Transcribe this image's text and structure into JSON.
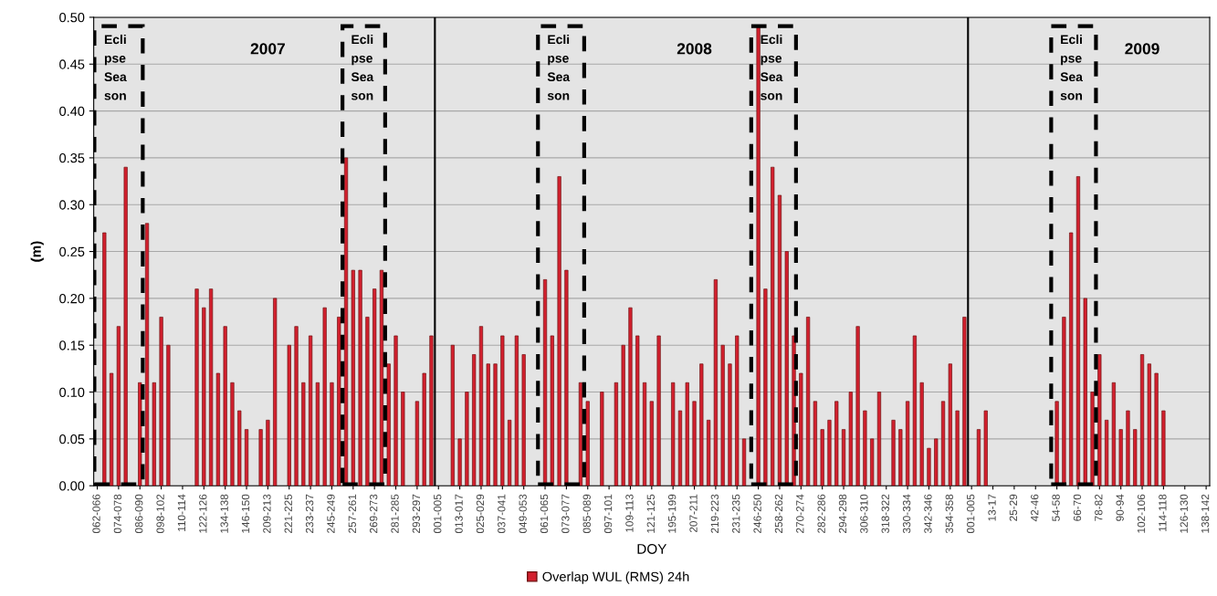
{
  "chart_data": {
    "type": "bar",
    "xlabel": "DOY",
    "ylabel": "(m)",
    "categories": [
      "062-066",
      null,
      null,
      "074-078",
      null,
      null,
      "086-090",
      null,
      null,
      "098-102",
      null,
      null,
      "110-114",
      null,
      null,
      "122-126",
      null,
      null,
      "134-138",
      null,
      null,
      "146-150",
      null,
      null,
      "209-213",
      null,
      null,
      "221-225",
      null,
      null,
      "233-237",
      null,
      null,
      "245-249",
      null,
      null,
      "257-261",
      null,
      null,
      "269-273",
      null,
      null,
      "281-285",
      null,
      null,
      "293-297",
      null,
      null,
      "001-005",
      null,
      null,
      "013-017",
      null,
      null,
      "025-029",
      null,
      null,
      "037-041",
      null,
      null,
      "049-053",
      null,
      null,
      "061-065",
      null,
      null,
      "073-077",
      null,
      null,
      "085-089",
      null,
      null,
      "097-101",
      null,
      null,
      "109-113",
      null,
      null,
      "121-125",
      null,
      null,
      "195-199",
      null,
      null,
      "207-211",
      null,
      null,
      "219-223",
      null,
      null,
      "231-235",
      null,
      null,
      "246-250",
      null,
      null,
      "258-262",
      null,
      null,
      "270-274",
      null,
      null,
      "282-286",
      null,
      null,
      "294-298",
      null,
      null,
      "306-310",
      null,
      null,
      "318-322",
      null,
      null,
      "330-334",
      null,
      null,
      "342-346",
      null,
      null,
      "354-358",
      null,
      null,
      "001-005",
      null,
      null,
      "13-17",
      null,
      null,
      "25-29",
      null,
      null,
      "42-46",
      null,
      null,
      "54-58",
      null,
      null,
      "66-70",
      null,
      null,
      "78-82",
      null,
      null,
      "90-94",
      null,
      null,
      "102-106",
      null,
      null,
      "114-118",
      null,
      null,
      "126-130",
      null,
      null,
      "138-142"
    ],
    "series": [
      {
        "name": "Overlap WUL (RMS) 24h",
        "color": "#d3202e",
        "values": [
          null,
          0.27,
          0.12,
          0.17,
          0.34,
          null,
          0.11,
          0.28,
          0.11,
          0.18,
          0.15,
          null,
          null,
          null,
          0.21,
          0.19,
          0.21,
          0.12,
          0.17,
          0.11,
          0.08,
          0.06,
          null,
          0.06,
          0.07,
          0.2,
          null,
          0.15,
          0.17,
          0.11,
          0.16,
          0.11,
          0.19,
          0.11,
          0.18,
          0.35,
          0.23,
          0.23,
          0.18,
          0.21,
          0.23,
          0.13,
          0.16,
          0.1,
          null,
          0.09,
          0.12,
          0.16,
          null,
          null,
          0.15,
          0.05,
          0.1,
          0.14,
          0.17,
          0.13,
          0.13,
          0.16,
          0.07,
          0.16,
          0.14,
          null,
          null,
          0.22,
          0.16,
          0.33,
          0.23,
          null,
          0.11,
          0.09,
          null,
          0.1,
          null,
          0.11,
          0.15,
          0.19,
          0.16,
          0.11,
          0.09,
          0.16,
          null,
          0.11,
          0.08,
          0.11,
          0.09,
          0.13,
          0.07,
          0.22,
          0.15,
          0.13,
          0.16,
          0.05,
          null,
          0.49,
          0.21,
          0.34,
          0.31,
          0.25,
          0.16,
          0.12,
          0.18,
          0.09,
          0.06,
          0.07,
          0.09,
          0.06,
          0.1,
          0.17,
          0.08,
          0.05,
          0.1,
          null,
          0.07,
          0.06,
          0.09,
          0.16,
          0.11,
          0.04,
          0.05,
          0.09,
          0.13,
          0.08,
          0.18,
          null,
          0.06,
          0.08,
          null,
          null,
          null,
          null,
          null,
          null,
          null,
          null,
          null,
          0.09,
          0.18,
          0.27,
          0.33,
          0.2,
          0.1,
          0.14,
          0.07,
          0.11,
          0.06,
          0.08,
          0.06,
          0.14,
          0.13,
          0.12,
          0.08,
          null,
          null,
          null,
          null,
          null,
          null
        ]
      }
    ],
    "ylim": [
      0,
      0.5
    ],
    "yticks": [
      {
        "value": 0,
        "label": "0.00"
      },
      {
        "value": 0.05,
        "label": "0.05"
      },
      {
        "value": 0.1,
        "label": "0.10"
      },
      {
        "value": 0.15,
        "label": "0.15"
      },
      {
        "value": 0.2,
        "label": "0.20"
      },
      {
        "value": 0.25,
        "label": "0.25"
      },
      {
        "value": 0.3,
        "label": "0.30"
      },
      {
        "value": 0.35,
        "label": "0.35"
      },
      {
        "value": 0.4,
        "label": "0.40"
      },
      {
        "value": 0.45,
        "label": "0.45"
      },
      {
        "value": 0.5,
        "label": "0.50"
      }
    ],
    "annotations": [
      "Ecli\npse\nSea\nson",
      "2007",
      "Ecli\npse\nSea\nson",
      "Ecli\npse\nSea\nson",
      "2008",
      "Ecli\npse\nSea\nson",
      "Ecli\npse\nSea\nson",
      "2009"
    ],
    "grid": "y",
    "legend": "bottom"
  }
}
